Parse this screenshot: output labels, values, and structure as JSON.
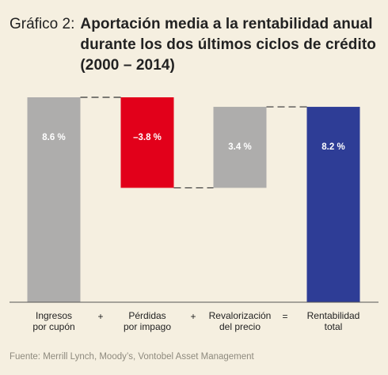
{
  "figure": {
    "number": "Gráfico 2:",
    "title": "Aportación media a la rentabilidad anual durante los dos últimos ciclos de crédito (2000 – 2014)"
  },
  "source": "Fuente: Merrill Lynch, Moody’s, Vontobel Asset Management",
  "colors": {
    "background": "#f5efe0",
    "gray_bar": "#aeadac",
    "red_bar": "#e2001a",
    "blue_bar": "#2e3d96",
    "connector": "#333333"
  },
  "chart_data": {
    "type": "waterfall",
    "title": "Aportación media a la rentabilidad anual durante los dos últimos ciclos de crédito (2000 – 2014)",
    "xlabel": "",
    "ylabel": "",
    "unit": "%",
    "grid": false,
    "categories": [
      "Ingresos por cupón",
      "Pérdidas por impago",
      "Revalorización del precio",
      "Rentabilidad total"
    ],
    "category_lines": [
      [
        "Ingresos",
        "por cupón"
      ],
      [
        "Pérdidas",
        "por impago"
      ],
      [
        "Revalorización",
        "del precio"
      ],
      [
        "Rentabilidad",
        "total"
      ]
    ],
    "values": [
      8.6,
      -3.8,
      3.4,
      8.2
    ],
    "labels": [
      "8.6 %",
      "–3.8 %",
      "3.4 %",
      "8.2 %"
    ],
    "operators": [
      "+",
      "+",
      "="
    ],
    "bar_kinds": [
      "increase",
      "decrease",
      "increase",
      "total"
    ],
    "ylim": [
      0,
      8.6
    ]
  }
}
